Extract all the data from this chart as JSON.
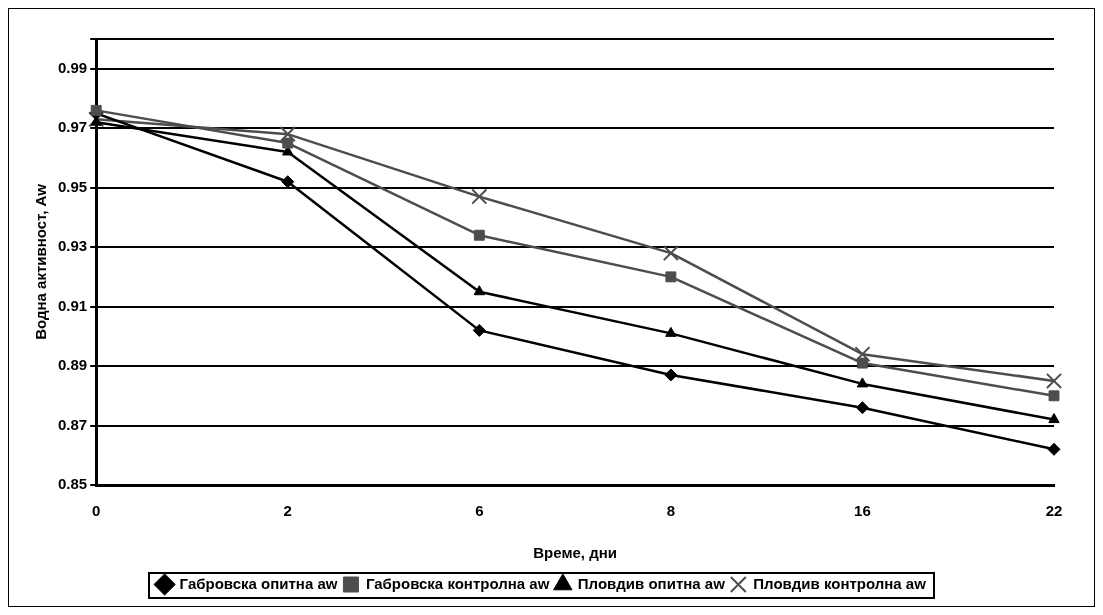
{
  "chart_data": {
    "type": "line",
    "xlabel": "Време, дни",
    "ylabel": "Водна активност, Aw",
    "categories": [
      "0",
      "2",
      "6",
      "8",
      "16",
      "22"
    ],
    "ylim": [
      0.85,
      1.0
    ],
    "yticks": [
      0.85,
      0.87,
      0.89,
      0.91,
      0.93,
      0.95,
      0.97,
      0.99,
      {
        "value": 1.0,
        "label": null
      }
    ],
    "grid": "y",
    "legend": "bottom",
    "line_style": "solid",
    "series": [
      {
        "name": "Габровска опитна aw",
        "color": "#000000",
        "marker": "diamond",
        "values": [
          0.975,
          0.952,
          0.902,
          0.887,
          0.876,
          0.862
        ]
      },
      {
        "name": "Габровска контролна aw",
        "color": "#4d4d4d",
        "marker": "square",
        "values": [
          0.976,
          0.965,
          0.934,
          0.92,
          0.891,
          0.88
        ]
      },
      {
        "name": "Пловдив опитна aw",
        "color": "#000000",
        "marker": "triangle",
        "values": [
          0.972,
          0.962,
          0.915,
          0.901,
          0.884,
          0.872
        ]
      },
      {
        "name": "Пловдив контролна aw",
        "color": "#4d4d4d",
        "marker": "cross",
        "values": [
          0.973,
          0.968,
          0.947,
          0.928,
          0.894,
          0.885
        ]
      }
    ]
  }
}
